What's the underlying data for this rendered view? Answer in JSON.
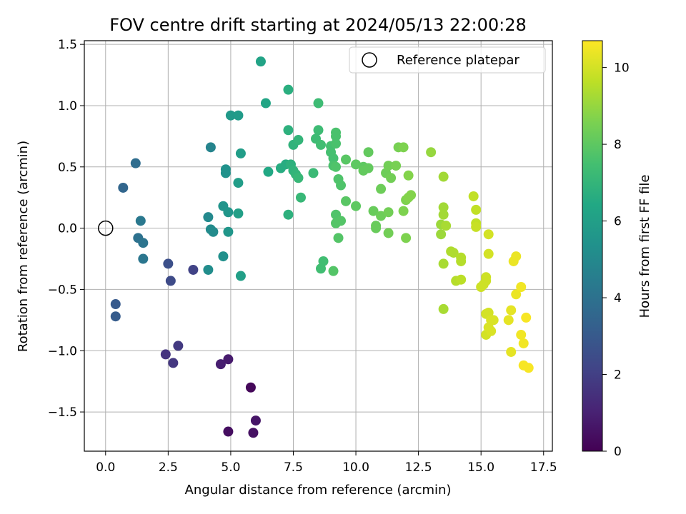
{
  "chart_data": {
    "type": "scatter",
    "title": "FOV centre drift starting at 2024/05/13 22:00:28",
    "xlabel": "Angular distance from reference (arcmin)",
    "ylabel": "Rotation from reference (arcmin)",
    "xlim": [
      -0.85,
      17.85
    ],
    "ylim": [
      -1.82,
      1.53
    ],
    "xticks": [
      0.0,
      2.5,
      5.0,
      7.5,
      10.0,
      12.5,
      15.0,
      17.5
    ],
    "xtick_labels": [
      "0.0",
      "2.5",
      "5.0",
      "7.5",
      "10.0",
      "12.5",
      "15.0",
      "17.5"
    ],
    "yticks": [
      -1.5,
      -1.0,
      -0.5,
      0.0,
      0.5,
      1.0,
      1.5
    ],
    "ytick_labels": [
      "−1.5",
      "−1.0",
      "−0.5",
      "0.0",
      "0.5",
      "1.0",
      "1.5"
    ],
    "grid": true,
    "legend": {
      "position": "top-right",
      "label": "Reference platepar"
    },
    "reference_point": {
      "x": 0.0,
      "y": 0.0
    },
    "colorbar": {
      "label": "Hours from first FF file",
      "range": [
        0,
        10.7
      ],
      "ticks": [
        0,
        2,
        4,
        6,
        8,
        10
      ],
      "tick_labels": [
        "0",
        "2",
        "4",
        "6",
        "8",
        "10"
      ],
      "colormap": "viridis"
    },
    "points": [
      {
        "x": 5.8,
        "y": -1.3,
        "c": 0.2
      },
      {
        "x": 4.9,
        "y": -1.66,
        "c": 0.4
      },
      {
        "x": 5.9,
        "y": -1.67,
        "c": 0.5
      },
      {
        "x": 6.0,
        "y": -1.57,
        "c": 0.6
      },
      {
        "x": 4.9,
        "y": -1.07,
        "c": 0.8
      },
      {
        "x": 4.6,
        "y": -1.11,
        "c": 0.9
      },
      {
        "x": 2.4,
        "y": -1.03,
        "c": 1.6
      },
      {
        "x": 2.7,
        "y": -1.1,
        "c": 1.7
      },
      {
        "x": 2.9,
        "y": -0.96,
        "c": 1.8
      },
      {
        "x": 3.5,
        "y": -0.34,
        "c": 2.1
      },
      {
        "x": 2.6,
        "y": -0.43,
        "c": 2.4
      },
      {
        "x": 2.5,
        "y": -0.29,
        "c": 2.6
      },
      {
        "x": 0.4,
        "y": -0.62,
        "c": 3.0
      },
      {
        "x": 0.4,
        "y": -0.72,
        "c": 3.1
      },
      {
        "x": 0.7,
        "y": 0.33,
        "c": 3.5
      },
      {
        "x": 1.2,
        "y": 0.53,
        "c": 3.8
      },
      {
        "x": 1.3,
        "y": -0.08,
        "c": 4.0
      },
      {
        "x": 1.5,
        "y": -0.12,
        "c": 4.1
      },
      {
        "x": 1.5,
        "y": -0.25,
        "c": 4.2
      },
      {
        "x": 1.4,
        "y": 0.06,
        "c": 4.3
      },
      {
        "x": 4.2,
        "y": 0.66,
        "c": 4.8
      },
      {
        "x": 4.1,
        "y": 0.09,
        "c": 5.0
      },
      {
        "x": 4.2,
        "y": -0.01,
        "c": 5.1
      },
      {
        "x": 4.3,
        "y": -0.03,
        "c": 5.1
      },
      {
        "x": 4.1,
        "y": -0.34,
        "c": 5.2
      },
      {
        "x": 4.7,
        "y": -0.23,
        "c": 5.3
      },
      {
        "x": 4.8,
        "y": 0.45,
        "c": 5.4
      },
      {
        "x": 4.8,
        "y": 0.48,
        "c": 5.4
      },
      {
        "x": 4.7,
        "y": 0.18,
        "c": 5.5
      },
      {
        "x": 4.9,
        "y": 0.13,
        "c": 5.6
      },
      {
        "x": 4.9,
        "y": -0.03,
        "c": 5.6
      },
      {
        "x": 5.0,
        "y": 0.92,
        "c": 5.7
      },
      {
        "x": 5.3,
        "y": 0.92,
        "c": 5.8
      },
      {
        "x": 5.4,
        "y": 0.61,
        "c": 5.9
      },
      {
        "x": 5.3,
        "y": 0.37,
        "c": 5.9
      },
      {
        "x": 5.3,
        "y": 0.12,
        "c": 6.0
      },
      {
        "x": 5.4,
        "y": -0.39,
        "c": 6.0
      },
      {
        "x": 6.2,
        "y": 1.36,
        "c": 6.2
      },
      {
        "x": 6.4,
        "y": 1.02,
        "c": 6.3
      },
      {
        "x": 6.5,
        "y": 0.46,
        "c": 6.4
      },
      {
        "x": 7.0,
        "y": 0.49,
        "c": 6.6
      },
      {
        "x": 7.2,
        "y": 0.52,
        "c": 6.6
      },
      {
        "x": 7.3,
        "y": 1.13,
        "c": 6.7
      },
      {
        "x": 7.3,
        "y": 0.8,
        "c": 6.8
      },
      {
        "x": 7.3,
        "y": 0.11,
        "c": 6.8
      },
      {
        "x": 7.4,
        "y": 0.52,
        "c": 6.8
      },
      {
        "x": 7.5,
        "y": 0.68,
        "c": 6.9
      },
      {
        "x": 7.5,
        "y": 0.47,
        "c": 6.9
      },
      {
        "x": 7.7,
        "y": 0.72,
        "c": 7.0
      },
      {
        "x": 7.6,
        "y": 0.44,
        "c": 7.0
      },
      {
        "x": 7.7,
        "y": 0.41,
        "c": 7.1
      },
      {
        "x": 7.8,
        "y": 0.25,
        "c": 7.1
      },
      {
        "x": 8.3,
        "y": 0.45,
        "c": 7.2
      },
      {
        "x": 8.5,
        "y": 1.02,
        "c": 7.3
      },
      {
        "x": 8.5,
        "y": 0.8,
        "c": 7.3
      },
      {
        "x": 8.4,
        "y": 0.73,
        "c": 7.3
      },
      {
        "x": 8.6,
        "y": 0.68,
        "c": 7.4
      },
      {
        "x": 8.7,
        "y": -0.27,
        "c": 7.4
      },
      {
        "x": 8.6,
        "y": -0.33,
        "c": 7.4
      },
      {
        "x": 9.0,
        "y": 0.67,
        "c": 7.5
      },
      {
        "x": 9.0,
        "y": 0.62,
        "c": 7.5
      },
      {
        "x": 9.1,
        "y": 0.57,
        "c": 7.5
      },
      {
        "x": 9.1,
        "y": 0.51,
        "c": 7.6
      },
      {
        "x": 9.2,
        "y": 0.78,
        "c": 7.6
      },
      {
        "x": 9.2,
        "y": 0.75,
        "c": 7.6
      },
      {
        "x": 9.2,
        "y": 0.69,
        "c": 7.6
      },
      {
        "x": 9.2,
        "y": 0.5,
        "c": 7.7
      },
      {
        "x": 9.3,
        "y": 0.4,
        "c": 7.7
      },
      {
        "x": 9.4,
        "y": 0.35,
        "c": 7.7
      },
      {
        "x": 9.2,
        "y": 0.11,
        "c": 7.7
      },
      {
        "x": 9.2,
        "y": 0.04,
        "c": 7.8
      },
      {
        "x": 9.4,
        "y": 0.06,
        "c": 7.8
      },
      {
        "x": 9.3,
        "y": -0.08,
        "c": 7.8
      },
      {
        "x": 9.1,
        "y": -0.35,
        "c": 7.8
      },
      {
        "x": 9.6,
        "y": 0.56,
        "c": 7.9
      },
      {
        "x": 9.6,
        "y": 0.22,
        "c": 7.9
      },
      {
        "x": 10.0,
        "y": 0.52,
        "c": 8.0
      },
      {
        "x": 10.0,
        "y": 0.18,
        "c": 8.0
      },
      {
        "x": 10.3,
        "y": 0.5,
        "c": 8.0
      },
      {
        "x": 10.3,
        "y": 0.47,
        "c": 8.1
      },
      {
        "x": 10.5,
        "y": 0.62,
        "c": 8.1
      },
      {
        "x": 10.5,
        "y": 0.49,
        "c": 8.1
      },
      {
        "x": 10.7,
        "y": 0.14,
        "c": 8.2
      },
      {
        "x": 10.8,
        "y": 0.02,
        "c": 8.2
      },
      {
        "x": 10.8,
        "y": 0.0,
        "c": 8.2
      },
      {
        "x": 11.0,
        "y": 0.32,
        "c": 8.3
      },
      {
        "x": 11.0,
        "y": 0.1,
        "c": 8.3
      },
      {
        "x": 11.2,
        "y": 0.45,
        "c": 8.3
      },
      {
        "x": 11.3,
        "y": 0.51,
        "c": 8.4
      },
      {
        "x": 11.3,
        "y": 0.13,
        "c": 8.4
      },
      {
        "x": 11.3,
        "y": -0.04,
        "c": 8.4
      },
      {
        "x": 11.4,
        "y": 0.41,
        "c": 8.4
      },
      {
        "x": 11.6,
        "y": 0.51,
        "c": 8.5
      },
      {
        "x": 11.7,
        "y": 0.66,
        "c": 8.5
      },
      {
        "x": 11.9,
        "y": 0.66,
        "c": 8.6
      },
      {
        "x": 11.9,
        "y": 0.14,
        "c": 8.6
      },
      {
        "x": 12.0,
        "y": 0.23,
        "c": 8.6
      },
      {
        "x": 12.0,
        "y": -0.08,
        "c": 8.6
      },
      {
        "x": 12.1,
        "y": 0.43,
        "c": 8.7
      },
      {
        "x": 12.1,
        "y": 0.25,
        "c": 8.7
      },
      {
        "x": 12.2,
        "y": 0.27,
        "c": 8.7
      },
      {
        "x": 13.0,
        "y": 0.62,
        "c": 9.0
      },
      {
        "x": 13.4,
        "y": 0.03,
        "c": 9.1
      },
      {
        "x": 13.4,
        "y": -0.05,
        "c": 9.1
      },
      {
        "x": 13.5,
        "y": 0.42,
        "c": 9.2
      },
      {
        "x": 13.5,
        "y": 0.17,
        "c": 9.2
      },
      {
        "x": 13.5,
        "y": 0.11,
        "c": 9.2
      },
      {
        "x": 13.5,
        "y": -0.29,
        "c": 9.3
      },
      {
        "x": 13.5,
        "y": -0.66,
        "c": 9.3
      },
      {
        "x": 13.6,
        "y": 0.02,
        "c": 9.3
      },
      {
        "x": 13.8,
        "y": -0.19,
        "c": 9.4
      },
      {
        "x": 13.9,
        "y": -0.2,
        "c": 9.4
      },
      {
        "x": 14.0,
        "y": -0.43,
        "c": 9.5
      },
      {
        "x": 14.2,
        "y": -0.24,
        "c": 9.5
      },
      {
        "x": 14.2,
        "y": -0.27,
        "c": 9.5
      },
      {
        "x": 14.2,
        "y": -0.42,
        "c": 9.6
      },
      {
        "x": 14.7,
        "y": 0.26,
        "c": 9.7
      },
      {
        "x": 14.8,
        "y": 0.15,
        "c": 9.7
      },
      {
        "x": 14.8,
        "y": 0.04,
        "c": 9.7
      },
      {
        "x": 14.8,
        "y": 0.01,
        "c": 9.8
      },
      {
        "x": 15.0,
        "y": -0.48,
        "c": 9.9
      },
      {
        "x": 15.1,
        "y": -0.46,
        "c": 9.9
      },
      {
        "x": 15.2,
        "y": -0.4,
        "c": 9.9
      },
      {
        "x": 15.2,
        "y": -0.43,
        "c": 9.9
      },
      {
        "x": 15.2,
        "y": -0.7,
        "c": 10.0
      },
      {
        "x": 15.2,
        "y": -0.87,
        "c": 10.0
      },
      {
        "x": 15.3,
        "y": -0.05,
        "c": 10.0
      },
      {
        "x": 15.3,
        "y": -0.21,
        "c": 10.0
      },
      {
        "x": 15.3,
        "y": -0.69,
        "c": 10.0
      },
      {
        "x": 15.3,
        "y": -0.81,
        "c": 10.1
      },
      {
        "x": 15.4,
        "y": -0.75,
        "c": 10.1
      },
      {
        "x": 15.4,
        "y": -0.84,
        "c": 10.1
      },
      {
        "x": 15.5,
        "y": -0.75,
        "c": 10.1
      },
      {
        "x": 16.1,
        "y": -0.75,
        "c": 10.3
      },
      {
        "x": 16.2,
        "y": -0.67,
        "c": 10.3
      },
      {
        "x": 16.2,
        "y": -1.01,
        "c": 10.3
      },
      {
        "x": 16.3,
        "y": -0.27,
        "c": 10.4
      },
      {
        "x": 16.4,
        "y": -0.23,
        "c": 10.4
      },
      {
        "x": 16.4,
        "y": -0.54,
        "c": 10.4
      },
      {
        "x": 16.6,
        "y": -0.48,
        "c": 10.5
      },
      {
        "x": 16.6,
        "y": -0.87,
        "c": 10.5
      },
      {
        "x": 16.7,
        "y": -0.94,
        "c": 10.5
      },
      {
        "x": 16.7,
        "y": -1.12,
        "c": 10.6
      },
      {
        "x": 16.8,
        "y": -0.73,
        "c": 10.6
      },
      {
        "x": 16.9,
        "y": -1.14,
        "c": 10.6
      }
    ]
  }
}
